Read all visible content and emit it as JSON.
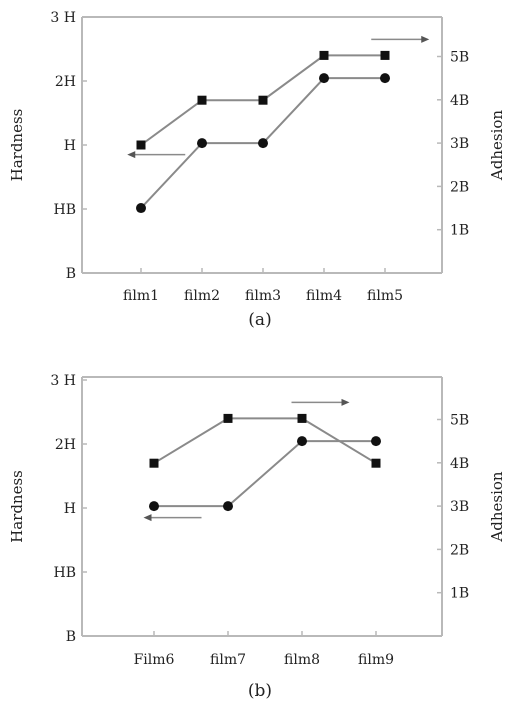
{
  "chart_data": [
    {
      "type": "line",
      "caption": "(a)",
      "categories": [
        "film1",
        "film2",
        "film3",
        "film4",
        "film5"
      ],
      "left_axis": {
        "label": "Hardness",
        "ticks": [
          "B",
          "HB",
          "H",
          "2H",
          "3 H"
        ],
        "range": [
          0,
          4
        ]
      },
      "right_axis": {
        "label": "Adhesion",
        "ticks": [
          "1B",
          "2B",
          "3B",
          "4B",
          "5B"
        ],
        "range": [
          0,
          5
        ]
      },
      "series": [
        {
          "marker": "square",
          "axis": "left",
          "values": [
            2.0,
            2.7,
            2.7,
            3.4,
            3.4
          ]
        },
        {
          "marker": "circle",
          "axis": "right",
          "values": [
            1.5,
            3.0,
            3.0,
            4.5,
            4.5
          ]
        }
      ],
      "arrows": [
        {
          "direction": "left",
          "x": 1.25,
          "y": 1.85
        },
        {
          "direction": "right",
          "x": 5.25,
          "y": 3.65
        }
      ],
      "grid": false,
      "legend": "none"
    },
    {
      "type": "line",
      "caption": "(b)",
      "categories": [
        "Film6",
        "film7",
        "film8",
        "film9"
      ],
      "left_axis": {
        "label": "Hardness",
        "ticks": [
          "B",
          "HB",
          "H",
          "2H",
          "3 H"
        ],
        "range": [
          0,
          4
        ]
      },
      "right_axis": {
        "label": "Adhesion",
        "ticks": [
          "1B",
          "2B",
          "3B",
          "4B",
          "5B"
        ],
        "range": [
          0,
          5
        ]
      },
      "series": [
        {
          "marker": "square",
          "axis": "left",
          "values": [
            2.7,
            3.4,
            3.4,
            2.7
          ]
        },
        {
          "marker": "circle",
          "axis": "right",
          "values": [
            3.0,
            3.0,
            4.5,
            4.5
          ]
        }
      ],
      "arrows": [
        {
          "direction": "left",
          "x": 1.25,
          "y": 1.85
        },
        {
          "direction": "right",
          "x": 3.25,
          "y": 3.65
        }
      ],
      "grid": false,
      "legend": "none"
    }
  ]
}
